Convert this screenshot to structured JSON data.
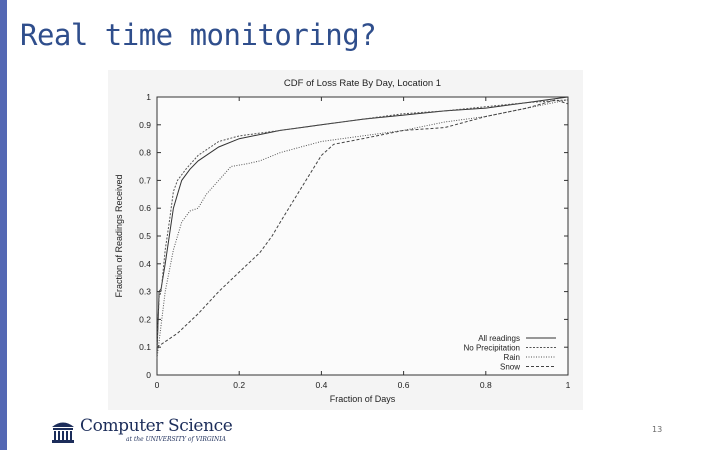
{
  "slide": {
    "title": "Real time monitoring?",
    "page_number": "13",
    "accent_color": "#5468b4",
    "title_color": "#2f4e8c"
  },
  "logo": {
    "icon": "rotunda-icon",
    "main_text": "Computer Science",
    "sub_text": "at the UNIVERSITY of VIRGINIA"
  },
  "chart_data": {
    "type": "line",
    "title": "CDF of Loss Rate By Day, Location 1",
    "xlabel": "Fraction of Days",
    "ylabel": "Fraction of Readings Received",
    "xlim": [
      0,
      1
    ],
    "ylim": [
      0,
      1
    ],
    "xticks": [
      "0",
      "0.2",
      "0.4",
      "0.6",
      "0.8",
      "1"
    ],
    "yticks": [
      "0",
      "0.1",
      "0.2",
      "0.3",
      "0.4",
      "0.5",
      "0.6",
      "0.7",
      "0.8",
      "0.9",
      "1"
    ],
    "grid": false,
    "legend_position": "bottom-right",
    "series": [
      {
        "name": "All readings",
        "dash": "solid",
        "points": [
          [
            0,
            0.08
          ],
          [
            0.005,
            0.3
          ],
          [
            0.01,
            0.31
          ],
          [
            0.02,
            0.4
          ],
          [
            0.03,
            0.5
          ],
          [
            0.04,
            0.6
          ],
          [
            0.05,
            0.65
          ],
          [
            0.06,
            0.7
          ],
          [
            0.08,
            0.74
          ],
          [
            0.1,
            0.77
          ],
          [
            0.15,
            0.82
          ],
          [
            0.2,
            0.85
          ],
          [
            0.3,
            0.88
          ],
          [
            0.4,
            0.9
          ],
          [
            0.5,
            0.92
          ],
          [
            0.6,
            0.935
          ],
          [
            0.7,
            0.95
          ],
          [
            0.8,
            0.96
          ],
          [
            0.9,
            0.98
          ],
          [
            0.95,
            0.99
          ],
          [
            1,
            1.0
          ]
        ]
      },
      {
        "name": "No Precipitation",
        "dash": "dot",
        "points": [
          [
            0,
            0.1
          ],
          [
            0.005,
            0.28
          ],
          [
            0.01,
            0.3
          ],
          [
            0.02,
            0.45
          ],
          [
            0.03,
            0.55
          ],
          [
            0.04,
            0.66
          ],
          [
            0.05,
            0.7
          ],
          [
            0.07,
            0.74
          ],
          [
            0.1,
            0.79
          ],
          [
            0.15,
            0.84
          ],
          [
            0.2,
            0.86
          ],
          [
            0.3,
            0.88
          ],
          [
            0.4,
            0.9
          ],
          [
            0.5,
            0.92
          ],
          [
            0.6,
            0.94
          ],
          [
            0.7,
            0.95
          ],
          [
            0.8,
            0.965
          ],
          [
            0.9,
            0.98
          ],
          [
            1,
            0.99
          ]
        ]
      },
      {
        "name": "Rain",
        "dash": "fine-dot",
        "points": [
          [
            0,
            0.06
          ],
          [
            0.02,
            0.3
          ],
          [
            0.04,
            0.45
          ],
          [
            0.06,
            0.55
          ],
          [
            0.08,
            0.59
          ],
          [
            0.1,
            0.6
          ],
          [
            0.12,
            0.65
          ],
          [
            0.15,
            0.7
          ],
          [
            0.18,
            0.75
          ],
          [
            0.22,
            0.76
          ],
          [
            0.25,
            0.77
          ],
          [
            0.3,
            0.8
          ],
          [
            0.35,
            0.82
          ],
          [
            0.4,
            0.84
          ],
          [
            0.5,
            0.86
          ],
          [
            0.6,
            0.88
          ],
          [
            0.7,
            0.91
          ],
          [
            0.8,
            0.93
          ],
          [
            0.9,
            0.96
          ],
          [
            1,
            0.99
          ]
        ]
      },
      {
        "name": "Snow",
        "dash": "dash",
        "points": [
          [
            0,
            0.1
          ],
          [
            0.05,
            0.15
          ],
          [
            0.1,
            0.22
          ],
          [
            0.15,
            0.3
          ],
          [
            0.2,
            0.37
          ],
          [
            0.25,
            0.44
          ],
          [
            0.28,
            0.5
          ],
          [
            0.3,
            0.55
          ],
          [
            0.35,
            0.67
          ],
          [
            0.4,
            0.79
          ],
          [
            0.43,
            0.83
          ],
          [
            0.5,
            0.85
          ],
          [
            0.6,
            0.88
          ],
          [
            0.7,
            0.89
          ],
          [
            0.8,
            0.93
          ],
          [
            0.9,
            0.96
          ],
          [
            0.97,
            0.99
          ],
          [
            1,
            0.975
          ]
        ]
      }
    ]
  }
}
